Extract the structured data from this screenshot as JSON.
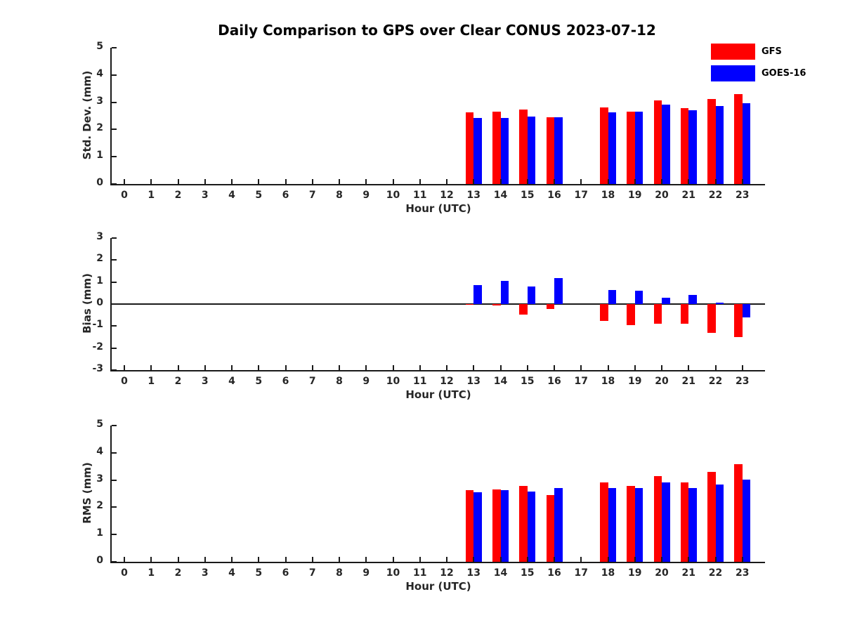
{
  "title": "Daily Comparison to GPS over Clear CONUS 2023-07-12",
  "legend": {
    "items": [
      {
        "label": "GFS",
        "color": "#ff0000"
      },
      {
        "label": "GOES-16",
        "color": "#0000ff"
      }
    ]
  },
  "colors": {
    "gfs": "#ff0000",
    "goes16": "#0000ff",
    "axis": "#1a1a1a",
    "text": "#000000",
    "background": "#ffffff"
  },
  "chart_data": [
    {
      "type": "bar",
      "title": "Daily Comparison to GPS over Clear CONUS 2023-07-12",
      "ylabel": "Std. Dev. (mm)",
      "xlabel": "Hour (UTC)",
      "ylim": [
        0,
        5
      ],
      "yticks": [
        0,
        1,
        2,
        3,
        4,
        5
      ],
      "grid": false,
      "legend_position": "top-right-outside",
      "categories": [
        "0",
        "1",
        "2",
        "3",
        "4",
        "5",
        "6",
        "7",
        "8",
        "9",
        "10",
        "11",
        "12",
        "13",
        "14",
        "15",
        "16",
        "17",
        "18",
        "19",
        "20",
        "21",
        "22",
        "23"
      ],
      "series": [
        {
          "name": "GFS",
          "color": "#ff0000",
          "values": [
            null,
            null,
            null,
            null,
            null,
            null,
            null,
            null,
            null,
            null,
            null,
            null,
            null,
            2.62,
            2.66,
            2.74,
            2.45,
            null,
            2.82,
            2.66,
            3.06,
            2.78,
            3.12,
            3.3
          ]
        },
        {
          "name": "GOES-16",
          "color": "#0000ff",
          "values": [
            null,
            null,
            null,
            null,
            null,
            null,
            null,
            null,
            null,
            null,
            null,
            null,
            null,
            2.42,
            2.42,
            2.48,
            2.46,
            null,
            2.64,
            2.66,
            2.92,
            2.7,
            2.87,
            2.96
          ]
        }
      ]
    },
    {
      "type": "bar",
      "title": "",
      "ylabel": "Bias (mm)",
      "xlabel": "Hour (UTC)",
      "ylim": [
        -3,
        3
      ],
      "yticks": [
        3,
        2,
        1,
        0,
        -1,
        -2,
        -3
      ],
      "zero_line": true,
      "grid": false,
      "categories": [
        "0",
        "1",
        "2",
        "3",
        "4",
        "5",
        "6",
        "7",
        "8",
        "9",
        "10",
        "11",
        "12",
        "13",
        "14",
        "15",
        "16",
        "17",
        "18",
        "19",
        "20",
        "21",
        "22",
        "23"
      ],
      "series": [
        {
          "name": "GFS",
          "color": "#ff0000",
          "values": [
            null,
            null,
            null,
            null,
            null,
            null,
            null,
            null,
            null,
            null,
            null,
            null,
            null,
            -0.02,
            -0.05,
            -0.48,
            -0.23,
            null,
            -0.78,
            -0.95,
            -0.9,
            -0.9,
            -1.3,
            -1.5
          ]
        },
        {
          "name": "GOES-16",
          "color": "#0000ff",
          "values": [
            null,
            null,
            null,
            null,
            null,
            null,
            null,
            null,
            null,
            null,
            null,
            null,
            null,
            0.87,
            1.05,
            0.8,
            1.17,
            null,
            0.65,
            0.6,
            0.28,
            0.4,
            0.05,
            -0.6
          ]
        }
      ]
    },
    {
      "type": "bar",
      "title": "",
      "ylabel": "RMS (mm)",
      "xlabel": "Hour (UTC)",
      "ylim": [
        0,
        5
      ],
      "yticks": [
        0,
        1,
        2,
        3,
        4,
        5
      ],
      "grid": false,
      "categories": [
        "0",
        "1",
        "2",
        "3",
        "4",
        "5",
        "6",
        "7",
        "8",
        "9",
        "10",
        "11",
        "12",
        "13",
        "14",
        "15",
        "16",
        "17",
        "18",
        "19",
        "20",
        "21",
        "22",
        "23"
      ],
      "series": [
        {
          "name": "GFS",
          "color": "#ff0000",
          "values": [
            null,
            null,
            null,
            null,
            null,
            null,
            null,
            null,
            null,
            null,
            null,
            null,
            null,
            2.62,
            2.66,
            2.78,
            2.45,
            null,
            2.92,
            2.79,
            3.15,
            2.9,
            3.31,
            3.58
          ]
        },
        {
          "name": "GOES-16",
          "color": "#0000ff",
          "values": [
            null,
            null,
            null,
            null,
            null,
            null,
            null,
            null,
            null,
            null,
            null,
            null,
            null,
            2.56,
            2.64,
            2.58,
            2.71,
            null,
            2.71,
            2.71,
            2.92,
            2.71,
            2.84,
            3.02
          ]
        }
      ]
    }
  ]
}
